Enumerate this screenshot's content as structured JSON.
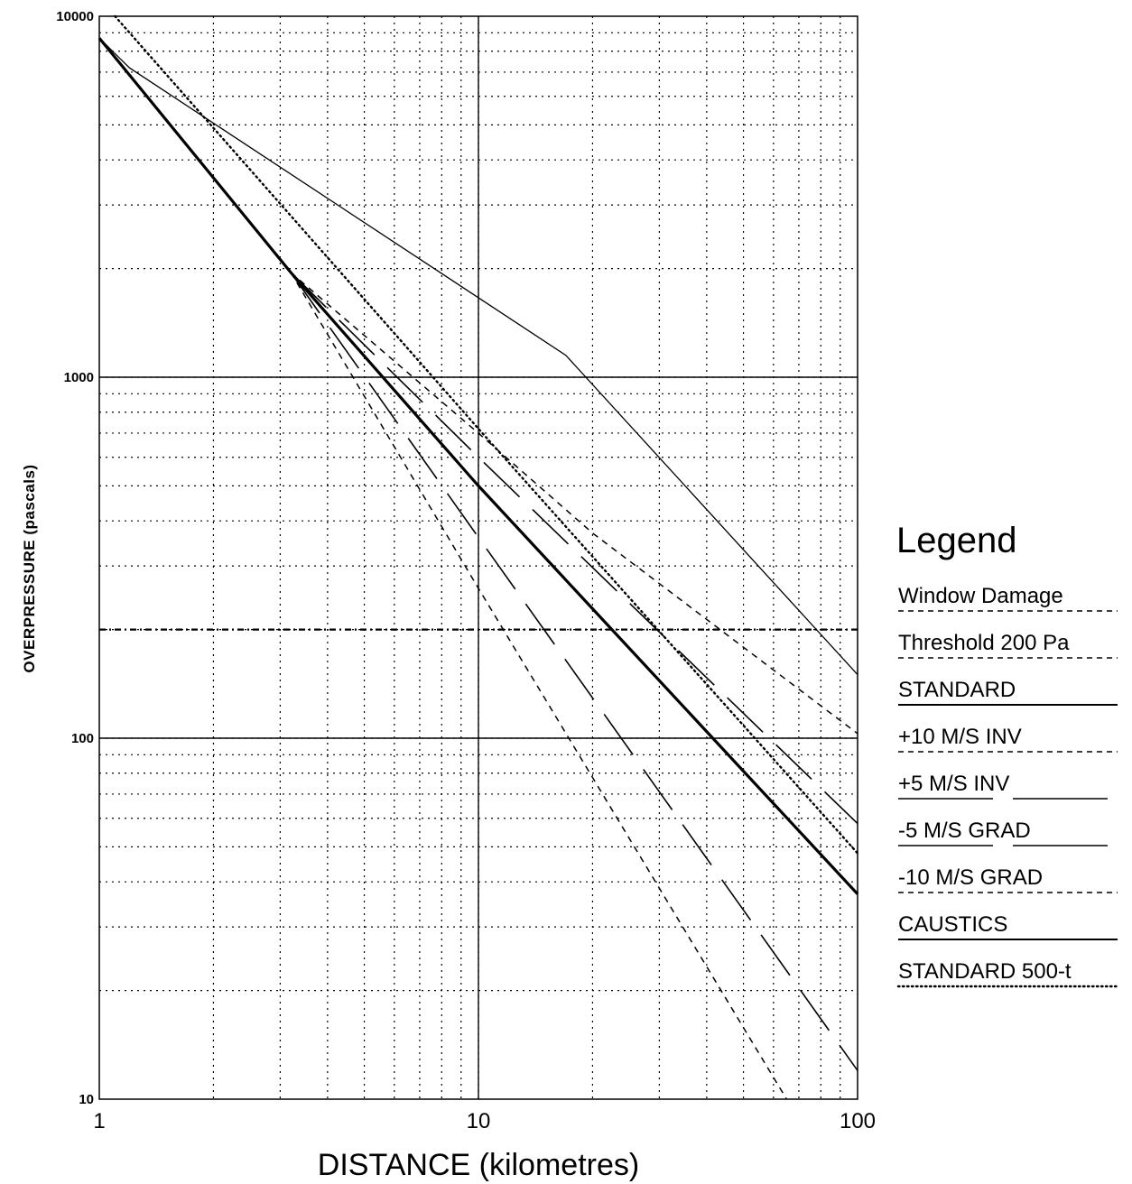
{
  "chart_data": {
    "type": "line",
    "xscale": "log",
    "yscale": "log",
    "xlim": [
      1,
      100
    ],
    "ylim": [
      10,
      10000
    ],
    "xlabel": "DISTANCE  (kilometres)",
    "ylabel": "OVERPRESSURE  (pascals)",
    "xticks": [
      "1",
      "10",
      "100"
    ],
    "yticks": [
      "10",
      "100",
      "1000",
      "10000"
    ],
    "grid": true,
    "legend_title": "Legend",
    "legend_position": "right",
    "series": [
      {
        "name": "Window Damage Threshold 200 Pa",
        "style": "dashdot",
        "points": [
          [
            1,
            200
          ],
          [
            100,
            200
          ]
        ]
      },
      {
        "name": "STANDARD",
        "style": "solid-thick",
        "points": [
          [
            1,
            8700
          ],
          [
            3.2,
            1950
          ],
          [
            10,
            500
          ],
          [
            100,
            37
          ]
        ]
      },
      {
        "name": "+10 M/S INV",
        "style": "dashed",
        "points": [
          [
            3.2,
            1950
          ],
          [
            10,
            700
          ],
          [
            20,
            370
          ],
          [
            100,
            103
          ]
        ]
      },
      {
        "name": "+5 M/S INV",
        "style": "longdash",
        "points": [
          [
            3.2,
            1950
          ],
          [
            10,
            600
          ],
          [
            100,
            58
          ]
        ]
      },
      {
        "name": "-5 M/S GRAD",
        "style": "longdash",
        "points": [
          [
            3.2,
            1950
          ],
          [
            10,
            360
          ],
          [
            100,
            12
          ]
        ]
      },
      {
        "name": "-10 M/S GRAD",
        "style": "dashed",
        "points": [
          [
            3.2,
            1950
          ],
          [
            10,
            260
          ],
          [
            65,
            10
          ]
        ]
      },
      {
        "name": "CAUSTICS",
        "style": "solid-thin",
        "points": [
          [
            1,
            8700
          ],
          [
            1.2,
            7200
          ],
          [
            17,
            1150
          ],
          [
            100,
            150
          ]
        ]
      },
      {
        "name": "STANDARD 500-t",
        "style": "dotted",
        "points": [
          [
            1.1,
            10000
          ],
          [
            10,
            720
          ],
          [
            100,
            48
          ]
        ]
      }
    ]
  }
}
